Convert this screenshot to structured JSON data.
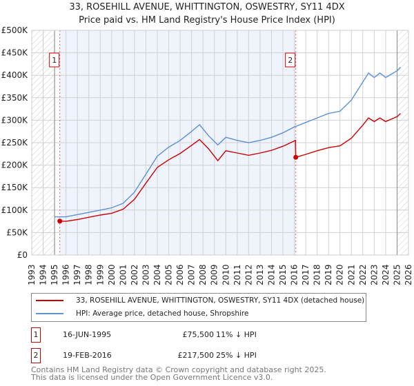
{
  "chart_data": {
    "type": "line",
    "title": "33, ROSEHILL AVENUE, WHITTINGTON, OSWESTRY, SY11 4DX",
    "subtitle": "Price paid vs. HM Land Registry's House Price Index (HPI)",
    "xlim": [
      1993,
      2026
    ],
    "ylim": [
      0,
      500000
    ],
    "y_ticks": [
      "£0",
      "£50K",
      "£100K",
      "£150K",
      "£200K",
      "£250K",
      "£300K",
      "£350K",
      "£400K",
      "£450K",
      "£500K"
    ],
    "x_ticks": [
      "1993",
      "1994",
      "1995",
      "1996",
      "1997",
      "1998",
      "1999",
      "2000",
      "2001",
      "2002",
      "2003",
      "2004",
      "2005",
      "2006",
      "2007",
      "2008",
      "2009",
      "2010",
      "2011",
      "2012",
      "2013",
      "2014",
      "2015",
      "2016",
      "2017",
      "2018",
      "2019",
      "2020",
      "2021",
      "2022",
      "2023",
      "2024",
      "2025",
      "2026"
    ],
    "grid": true,
    "series": [
      {
        "name": "33, ROSEHILL AVENUE, WHITTINGTON, OSWESTRY, SY11 4DX (detached house)",
        "color": "#cc0000",
        "points": [
          [
            1995.46,
            75500
          ],
          [
            1996,
            75000
          ],
          [
            1997,
            79000
          ],
          [
            1998,
            84000
          ],
          [
            1999,
            89000
          ],
          [
            2000,
            93000
          ],
          [
            2001,
            102000
          ],
          [
            2002,
            124000
          ],
          [
            2003,
            160000
          ],
          [
            2004,
            195000
          ],
          [
            2005,
            212000
          ],
          [
            2006,
            226000
          ],
          [
            2007,
            244000
          ],
          [
            2007.7,
            257000
          ],
          [
            2008.5,
            236000
          ],
          [
            2009.3,
            210000
          ],
          [
            2010,
            232000
          ],
          [
            2011,
            227000
          ],
          [
            2012,
            222000
          ],
          [
            2013,
            227000
          ],
          [
            2014,
            233000
          ],
          [
            2015,
            242000
          ],
          [
            2016.1,
            255000
          ],
          [
            2016.13,
            217500
          ],
          [
            2017,
            224000
          ],
          [
            2018,
            232000
          ],
          [
            2019,
            239000
          ],
          [
            2020,
            243000
          ],
          [
            2021,
            260000
          ],
          [
            2022,
            289000
          ],
          [
            2022.5,
            305000
          ],
          [
            2023,
            297000
          ],
          [
            2023.5,
            305000
          ],
          [
            2024,
            297000
          ],
          [
            2025,
            308000
          ],
          [
            2025.3,
            315000
          ]
        ]
      },
      {
        "name": "HPI: Average price, detached house, Shropshire",
        "color": "#5b8fd6",
        "points": [
          [
            1995,
            85000
          ],
          [
            1996,
            85000
          ],
          [
            1997,
            90000
          ],
          [
            1998,
            95000
          ],
          [
            1999,
            100000
          ],
          [
            2000,
            105000
          ],
          [
            2001,
            115000
          ],
          [
            2002,
            140000
          ],
          [
            2003,
            180000
          ],
          [
            2004,
            220000
          ],
          [
            2005,
            240000
          ],
          [
            2006,
            255000
          ],
          [
            2007,
            275000
          ],
          [
            2007.7,
            290000
          ],
          [
            2008.5,
            265000
          ],
          [
            2009.3,
            245000
          ],
          [
            2010,
            262000
          ],
          [
            2011,
            255000
          ],
          [
            2012,
            250000
          ],
          [
            2013,
            255000
          ],
          [
            2014,
            262000
          ],
          [
            2015,
            272000
          ],
          [
            2016,
            285000
          ],
          [
            2017,
            295000
          ],
          [
            2018,
            305000
          ],
          [
            2019,
            315000
          ],
          [
            2020,
            320000
          ],
          [
            2021,
            345000
          ],
          [
            2022,
            385000
          ],
          [
            2022.5,
            405000
          ],
          [
            2023,
            395000
          ],
          [
            2023.5,
            405000
          ],
          [
            2024,
            395000
          ],
          [
            2025,
            410000
          ],
          [
            2025.3,
            418000
          ]
        ]
      }
    ],
    "sales": [
      {
        "id": "1",
        "year": 1995.46,
        "value": 75500
      },
      {
        "id": "2",
        "year": 2016.13,
        "value": 217500
      }
    ],
    "legend_position": "bottom"
  },
  "table": [
    {
      "id": "1",
      "date": "16-JUN-1995",
      "price": "£75,500",
      "hpi": "11% ↓ HPI"
    },
    {
      "id": "2",
      "date": "19-FEB-2016",
      "price": "£217,500",
      "hpi": "25% ↓ HPI"
    }
  ],
  "footer": [
    "Contains HM Land Registry data © Crown copyright and database right 2025.",
    "This data is licensed under the Open Government Licence v3.0."
  ]
}
